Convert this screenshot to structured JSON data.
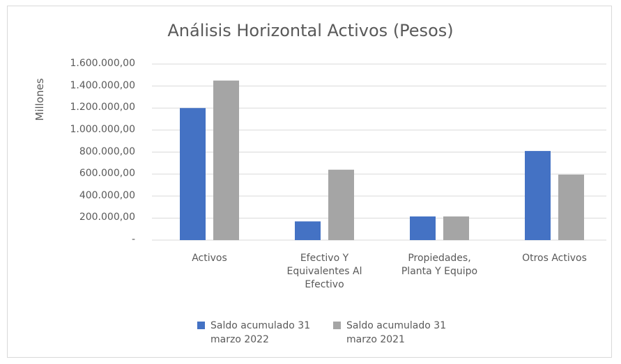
{
  "chart_data": {
    "type": "bar",
    "title": "Análisis Horizontal Activos (Pesos)",
    "y_label": "Millones",
    "categories": [
      "Activos",
      "Efectivo Y Equivalentes Al Efectivo",
      "Propiedades, Planta Y Equipo",
      "Otros Activos"
    ],
    "series": [
      {
        "name": "Saldo acumulado 31 marzo 2022",
        "color": "#4472c4",
        "values": [
          1200000,
          170000,
          215000,
          810000
        ]
      },
      {
        "name": "Saldo acumulado 31 marzo 2021",
        "color": "#a5a5a5",
        "values": [
          1450000,
          640000,
          215000,
          595000
        ]
      }
    ],
    "ylim": [
      0,
      1600000
    ],
    "yticks": [
      {
        "value": 0,
        "label": "-"
      },
      {
        "value": 200000,
        "label": "200.000,00"
      },
      {
        "value": 400000,
        "label": "400.000,00"
      },
      {
        "value": 600000,
        "label": "600.000,00"
      },
      {
        "value": 800000,
        "label": "800.000,00"
      },
      {
        "value": 1000000,
        "label": "1.000.000,00"
      },
      {
        "value": 1200000,
        "label": "1.200.000,00"
      },
      {
        "value": 1400000,
        "label": "1.400.000,00"
      },
      {
        "value": 1600000,
        "label": "1.600.000,00"
      }
    ],
    "grid": true,
    "legend": "bottom"
  }
}
